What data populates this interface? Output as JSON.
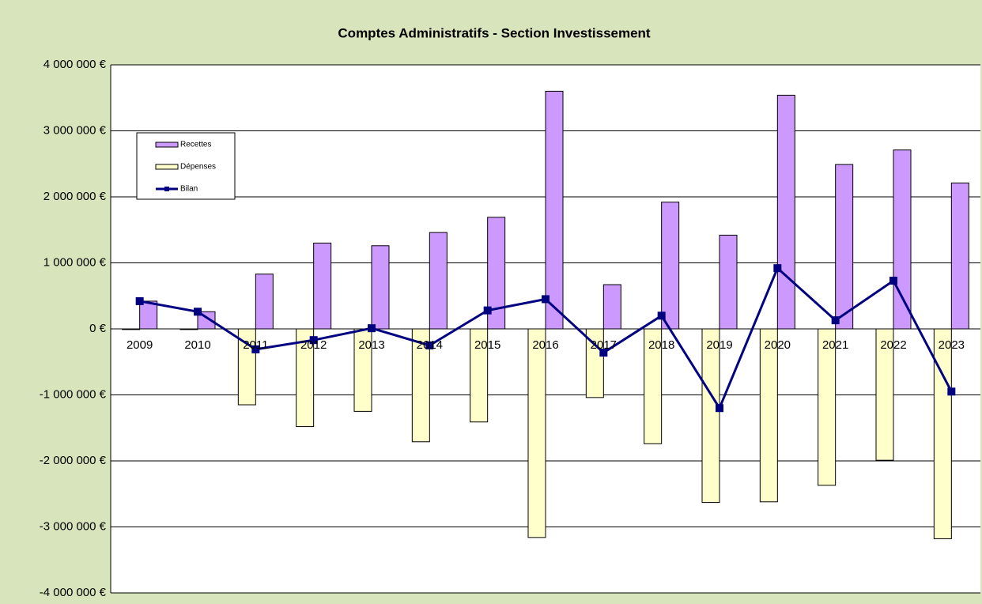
{
  "chart_data": {
    "type": "bar_line",
    "title": "Comptes Administratifs  - Section Investissement",
    "categories": [
      "2009",
      "2010",
      "2011",
      "2012",
      "2013",
      "2014",
      "2015",
      "2016",
      "2017",
      "2018",
      "2019",
      "2020",
      "2021",
      "2022",
      "2023"
    ],
    "series": [
      {
        "name": "Recettes",
        "type": "bar",
        "color": "#cc99ff",
        "values": [
          420000,
          260000,
          830000,
          1300000,
          1260000,
          1460000,
          1690000,
          3600000,
          670000,
          1920000,
          1420000,
          3540000,
          2490000,
          2710000,
          2210000
        ]
      },
      {
        "name": "Dépenses",
        "type": "bar",
        "color": "#ffffcc",
        "values": [
          -10000,
          -10000,
          -1150000,
          -1480000,
          -1250000,
          -1710000,
          -1410000,
          -3160000,
          -1040000,
          -1740000,
          -2630000,
          -2620000,
          -2370000,
          -1990000,
          -3180000
        ]
      },
      {
        "name": "Bilan",
        "type": "line",
        "color": "#000080",
        "values": [
          420000,
          260000,
          -310000,
          -170000,
          10000,
          -250000,
          280000,
          450000,
          -360000,
          200000,
          -1200000,
          920000,
          130000,
          730000,
          -950000
        ]
      }
    ],
    "ylim": [
      -4000000,
      4000000
    ],
    "yticks": [
      {
        "value": -4000000,
        "label": "-4 000 000 €"
      },
      {
        "value": -3000000,
        "label": "-3 000 000 €"
      },
      {
        "value": -2000000,
        "label": "-2 000 000 €"
      },
      {
        "value": -1000000,
        "label": "-1 000 000 €"
      },
      {
        "value": 0,
        "label": "0 €"
      },
      {
        "value": 1000000,
        "label": "1 000 000 €"
      },
      {
        "value": 2000000,
        "label": "2 000 000 €"
      },
      {
        "value": 3000000,
        "label": "3 000 000 €"
      },
      {
        "value": 4000000,
        "label": "4 000 000 €"
      }
    ],
    "grid": true,
    "legend": "upper left"
  }
}
